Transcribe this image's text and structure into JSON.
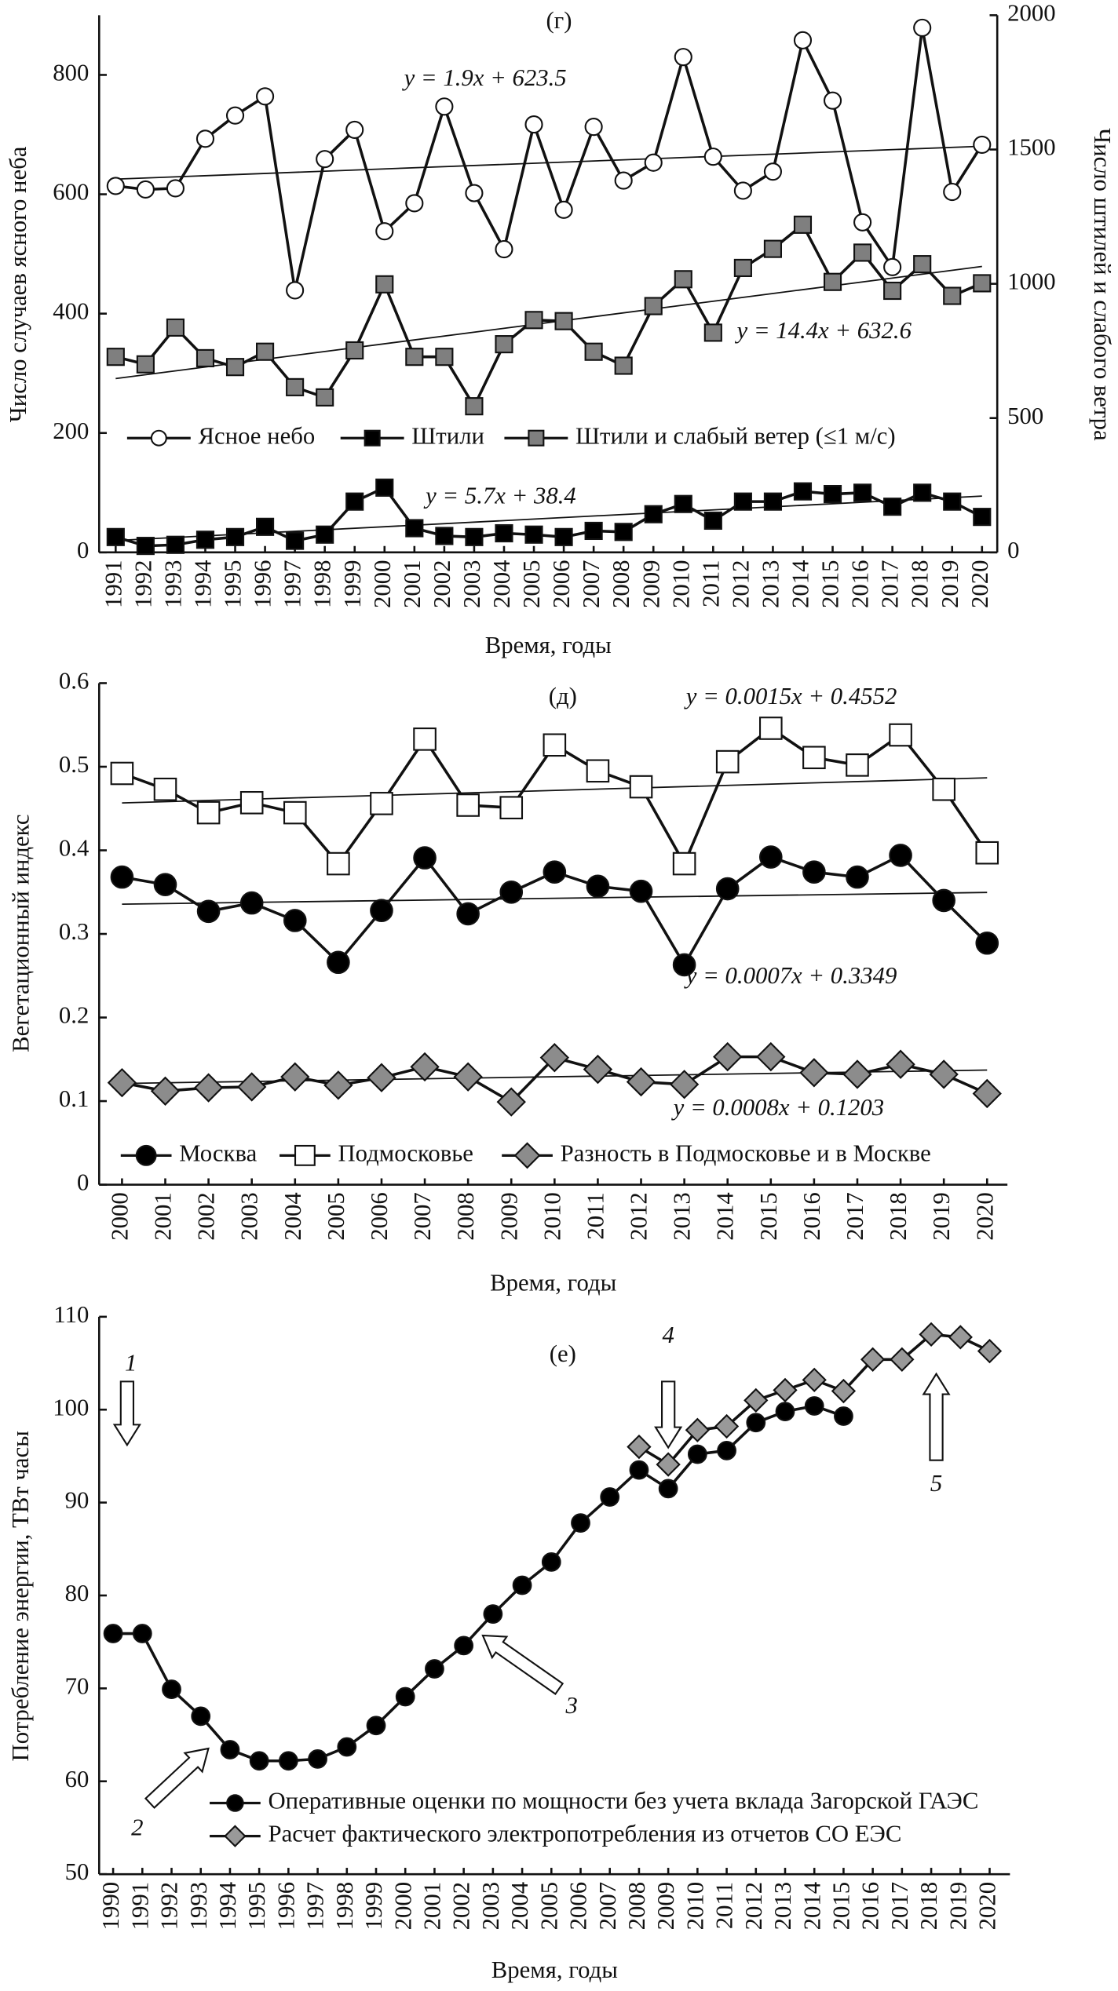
{
  "chart_data": [
    {
      "type": "line",
      "title": "(г)",
      "ylabel": "Число случаев ясного неба",
      "y2label": "Число штилей и слабого ветра",
      "xlabel": "Время, годы",
      "categories": [
        "1991",
        "1992",
        "1993",
        "1994",
        "1995",
        "1996",
        "1997",
        "1998",
        "1999",
        "2000",
        "2001",
        "2002",
        "2003",
        "2004",
        "2005",
        "2006",
        "2007",
        "2008",
        "2009",
        "2010",
        "2011",
        "2012",
        "2013",
        "2014",
        "2015",
        "2016",
        "2017",
        "2018",
        "2019",
        "2020"
      ],
      "ylim": [
        0,
        900
      ],
      "yticks": [
        0,
        200,
        400,
        600,
        800
      ],
      "y2lim": [
        0,
        2000
      ],
      "y2ticks": [
        0,
        500,
        1000,
        1500,
        2000
      ],
      "series": [
        {
          "name": "Ясное небо",
          "marker": "circle",
          "color": "#ffffff",
          "trend": {
            "label": "y = 1.9x + 623.5",
            "slope": 1.9,
            "intercept": 623.5
          },
          "values": [
            614,
            608,
            610,
            693,
            732,
            764,
            439,
            659,
            708,
            538,
            585,
            747,
            602,
            508,
            717,
            574,
            713,
            623,
            653,
            830,
            663,
            606,
            638,
            858,
            757,
            553,
            478,
            879,
            604,
            683
          ]
        },
        {
          "name": "Штили",
          "marker": "square",
          "color": "#000000",
          "axis": "y2",
          "trend": {
            "label": "y = 5.7x + 38.4",
            "slope": 5.7,
            "intercept": 38.4
          },
          "values": [
            57,
            24,
            28,
            47,
            57,
            95,
            43,
            66,
            189,
            241,
            90,
            61,
            57,
            71,
            66,
            57,
            80,
            76,
            142,
            180,
            118,
            189,
            189,
            227,
            217,
            222,
            170,
            222,
            189,
            132
          ]
        },
        {
          "name": "Штили и слабый ветер (≤1 м/с)",
          "marker": "square",
          "color": "#7f7f7f",
          "axis": "y2",
          "trend": {
            "label": "y = 14.4x + 632.6",
            "slope": 14.4,
            "intercept": 632.6
          },
          "values": [
            728,
            700,
            837,
            723,
            690,
            747,
            615,
            577,
            752,
            998,
            728,
            728,
            544,
            775,
            865,
            861,
            747,
            695,
            917,
            1017,
            818,
            1059,
            1130,
            1220,
            1007,
            1116,
            974,
            1073,
            955,
            1002
          ]
        }
      ]
    },
    {
      "type": "line",
      "title": "(д)",
      "ylabel": "Вегетационный индекс",
      "xlabel": "Время, годы",
      "categories": [
        "2000",
        "2001",
        "2002",
        "2003",
        "2004",
        "2005",
        "2006",
        "2007",
        "2008",
        "2009",
        "2010",
        "2011",
        "2012",
        "2013",
        "2014",
        "2015",
        "2016",
        "2017",
        "2018",
        "2019",
        "2020"
      ],
      "ylim": [
        0,
        0.6
      ],
      "yticks": [
        0,
        0.1,
        0.2,
        0.3,
        0.4,
        0.5,
        0.6
      ],
      "series": [
        {
          "name": "Москва",
          "marker": "circle",
          "color": "#000000",
          "trend": {
            "label": "y = 0.0007x + 0.3349",
            "slope": 0.0007,
            "intercept": 0.3349
          },
          "values": [
            0.368,
            0.359,
            0.327,
            0.337,
            0.316,
            0.266,
            0.328,
            0.391,
            0.324,
            0.35,
            0.374,
            0.357,
            0.351,
            0.263,
            0.354,
            0.392,
            0.374,
            0.368,
            0.394,
            0.34,
            0.289
          ]
        },
        {
          "name": "Подмосковье",
          "marker": "square",
          "color": "#ffffff",
          "trend": {
            "label": "y = 0.0015x + 0.4552",
            "slope": 0.0015,
            "intercept": 0.4552
          },
          "values": [
            0.492,
            0.473,
            0.445,
            0.457,
            0.445,
            0.384,
            0.456,
            0.533,
            0.454,
            0.451,
            0.526,
            0.495,
            0.476,
            0.384,
            0.506,
            0.546,
            0.511,
            0.502,
            0.538,
            0.473,
            0.397
          ]
        },
        {
          "name": "Разность в Подмосковье и в Москве",
          "marker": "diamond",
          "color": "#8c8c8c",
          "trend": {
            "label": "y = 0.0008x + 0.1203",
            "slope": 0.0008,
            "intercept": 0.1203
          },
          "values": [
            0.122,
            0.112,
            0.116,
            0.117,
            0.129,
            0.119,
            0.128,
            0.141,
            0.129,
            0.099,
            0.152,
            0.138,
            0.123,
            0.12,
            0.153,
            0.153,
            0.134,
            0.132,
            0.144,
            0.132,
            0.109
          ]
        }
      ]
    },
    {
      "type": "line",
      "title": "(е)",
      "ylabel": "Потребление энергии, ТВт часы",
      "xlabel": "Время, годы",
      "categories": [
        "1990",
        "1991",
        "1992",
        "1993",
        "1994",
        "1995",
        "1996",
        "1997",
        "1998",
        "1999",
        "2000",
        "2001",
        "2002",
        "2003",
        "2004",
        "2005",
        "2006",
        "2007",
        "2008",
        "2009",
        "2010",
        "2011",
        "2012",
        "2013",
        "2014",
        "2015",
        "2016",
        "2017",
        "2018",
        "2019",
        "2020"
      ],
      "ylim": [
        50,
        110
      ],
      "yticks": [
        50,
        60,
        70,
        80,
        90,
        100,
        110
      ],
      "annotations": [
        {
          "label": "1"
        },
        {
          "label": "2"
        },
        {
          "label": "3"
        },
        {
          "label": "4"
        },
        {
          "label": "5"
        }
      ],
      "series": [
        {
          "name": "Оперативные оценки по мощности без учета вклада Загорской ГАЭС",
          "marker": "circle",
          "color": "#000000",
          "values": [
            75.9,
            75.9,
            69.9,
            67.0,
            63.4,
            62.2,
            62.2,
            62.4,
            63.7,
            66.0,
            69.1,
            72.1,
            74.6,
            78.0,
            81.1,
            83.6,
            87.8,
            90.6,
            93.5,
            91.5,
            95.2,
            95.6,
            98.6,
            99.8,
            100.4,
            99.3,
            null,
            null,
            null,
            null,
            null
          ]
        },
        {
          "name": "Расчет фактического электропотребления из отчетов СО ЕЭС",
          "marker": "diamond",
          "color": "#999999",
          "values": [
            null,
            null,
            null,
            null,
            null,
            null,
            null,
            null,
            null,
            null,
            null,
            null,
            null,
            null,
            null,
            null,
            null,
            null,
            96.0,
            94.1,
            97.8,
            98.2,
            101.0,
            102.1,
            103.2,
            102.0,
            105.4,
            105.4,
            108.1,
            107.8,
            106.3
          ]
        }
      ]
    }
  ]
}
